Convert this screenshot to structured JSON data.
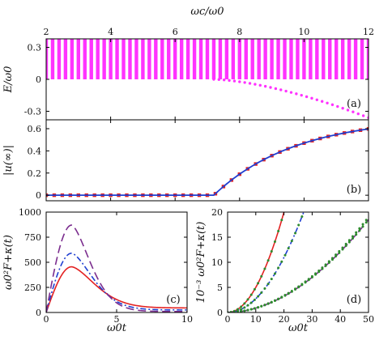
{
  "chart_data": [
    {
      "panel": "top",
      "type": "scatter",
      "xlabel": "ωc/ω0",
      "ylabel": "E/ω0",
      "xticks": [
        "2",
        "4",
        "6",
        "8",
        "10",
        "12"
      ],
      "yticks": [
        "0.3",
        "0",
        "-0.3"
      ],
      "xlim": [
        2,
        12
      ],
      "ylim": [
        -0.38,
        0.38
      ],
      "panel_label": "(a)",
      "series": [
        {
          "role": "continuum",
          "style": "vertical bars",
          "color": "#ff33ff",
          "x_range": [
            2,
            12
          ],
          "y_range": [
            0,
            0.38
          ]
        },
        {
          "role": "bound-state",
          "style": "dots",
          "color": "#ff33ff",
          "x": [
            7.2,
            7.6,
            8.0,
            8.4,
            8.8,
            9.2,
            9.6,
            10.0,
            10.4,
            10.8,
            11.2,
            11.6,
            12.0
          ],
          "y": [
            0.0,
            -0.005,
            -0.02,
            -0.04,
            -0.065,
            -0.095,
            -0.13,
            -0.16,
            -0.2,
            -0.24,
            -0.28,
            -0.32,
            -0.36
          ]
        }
      ]
    },
    {
      "panel": "middle",
      "type": "line",
      "ylabel": "|u(∞)|",
      "yticks": [
        "0",
        "0.2",
        "0.4",
        "0.6"
      ],
      "xlim": [
        2,
        12
      ],
      "ylim": [
        -0.05,
        0.68
      ],
      "panel_label": "(b)",
      "series": [
        {
          "role": "analytic",
          "style": "solid",
          "color": "#1f3fd1",
          "x": [
            2,
            7.2,
            7.4,
            7.6,
            7.8,
            8.0,
            8.5,
            9.0,
            9.5,
            10.0,
            10.5,
            11.0,
            11.5,
            12.0
          ],
          "y": [
            0,
            0,
            0.06,
            0.14,
            0.2,
            0.25,
            0.33,
            0.4,
            0.45,
            0.5,
            0.54,
            0.57,
            0.6,
            0.62
          ]
        },
        {
          "role": "numeric",
          "style": "markers",
          "color": "#e32222"
        }
      ]
    },
    {
      "panel": "bottom-left",
      "type": "line",
      "xlabel": "ω0t",
      "ylabel": "ω0²F+κ(t)",
      "xticks": [
        "0",
        "5",
        "10"
      ],
      "yticks": [
        "0",
        "250",
        "500",
        "750",
        "1000"
      ],
      "xlim": [
        0,
        10
      ],
      "ylim": [
        0,
        1000
      ],
      "panel_label": "(c)",
      "series": [
        {
          "style": "solid",
          "color": "#e32222",
          "peak": [
            1.8,
            455
          ],
          "y_at_10": 45
        },
        {
          "style": "dash-dot",
          "color": "#1f3fd1",
          "peak": [
            1.8,
            590
          ],
          "y_at_10": 25
        },
        {
          "style": "long-dash",
          "color": "#7b2d8e",
          "peak": [
            1.8,
            870
          ],
          "y_at_10": 10
        }
      ]
    },
    {
      "panel": "bottom-right",
      "type": "line",
      "xlabel": "ω0t",
      "ylabel": "10⁻³ ω0²F+κ(t)",
      "xticks": [
        "0",
        "10",
        "20",
        "30",
        "40",
        "50"
      ],
      "yticks": [
        "0",
        "5",
        "10",
        "15",
        "20"
      ],
      "xlim": [
        0,
        50
      ],
      "ylim": [
        0,
        20
      ],
      "panel_label": "(d)",
      "series": [
        {
          "style": "solid+dots",
          "color": "#e32222",
          "marker_color": "#2e8b2e",
          "x_at_top": 20
        },
        {
          "style": "dash-dot+dots",
          "color": "#1f3fd1",
          "marker_color": "#2e8b2e",
          "x_at_top": 27
        },
        {
          "style": "long-dash+dots",
          "color": "#7b2d8e",
          "marker_color": "#2e8b2e",
          "y_at_50": 18.5
        },
        {
          "style": "dots",
          "color": "#2e8b2e",
          "y_at_50": 19
        }
      ]
    }
  ]
}
